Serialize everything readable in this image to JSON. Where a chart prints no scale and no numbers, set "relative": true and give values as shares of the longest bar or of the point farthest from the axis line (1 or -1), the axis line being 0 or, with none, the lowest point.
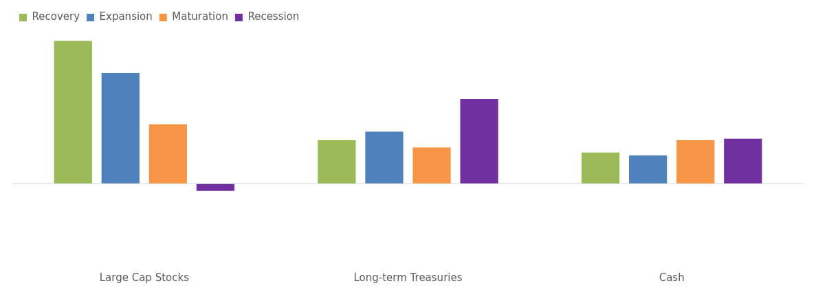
{
  "chart_data": {
    "type": "bar",
    "relative": true,
    "categories": [
      "Large Cap Stocks",
      "Long-term Treasuries",
      "Cash"
    ],
    "series": [
      {
        "name": "Recovery",
        "color": "#9bbb59",
        "values": [
          1,
          0.305,
          0.218
        ]
      },
      {
        "name": "Expansion",
        "color": "#4f81bd",
        "values": [
          0.777,
          0.365,
          0.198
        ]
      },
      {
        "name": "Maturation",
        "color": "#f79646",
        "values": [
          0.416,
          0.254,
          0.305
        ]
      },
      {
        "name": "Recession",
        "color": "#7030a0",
        "values": [
          -0.051,
          0.594,
          0.315
        ]
      }
    ],
    "legend": "top left",
    "grid": false
  }
}
